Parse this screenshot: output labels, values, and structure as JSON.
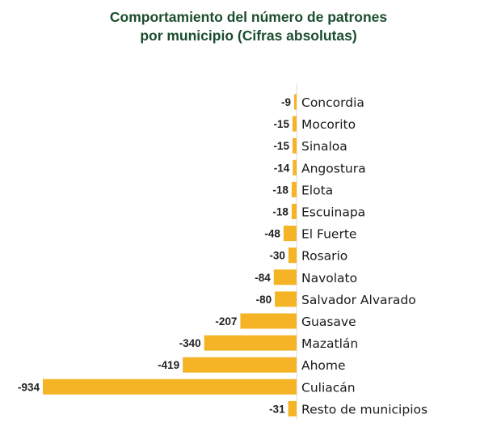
{
  "chart_data": {
    "type": "bar",
    "orientation": "horizontal",
    "title": "Comportamiento del número de patrones por municipio (Cifras absolutas)",
    "title_lines": [
      "Comportamiento del número de patrones",
      "por municipio (Cifras absolutas)"
    ],
    "categories": [
      "Concordia",
      "Mocorito",
      "Sinaloa",
      "Angostura",
      "Elota",
      "Escuinapa",
      "El Fuerte",
      "Rosario",
      "Navolato",
      "Salvador Alvarado",
      "Guasave",
      "Mazatlán",
      "Ahome",
      "Culiacán",
      "Resto de municipios"
    ],
    "values": [
      -9,
      -15,
      -15,
      -14,
      -18,
      -18,
      -48,
      -30,
      -84,
      -80,
      -207,
      -340,
      -419,
      -934,
      -31
    ],
    "value_labels": [
      "-9",
      "-15",
      "-15",
      "-14",
      "-18",
      "-18",
      "-48",
      "-30",
      "-84",
      "-80",
      "-207",
      "-340",
      "-419",
      "-934",
      "-31"
    ],
    "xlim": [
      -934,
      0
    ],
    "grid": false,
    "legend": "none",
    "colors": {
      "bar": "#f5b326",
      "axis": "#d9d9d9",
      "title": "#1b4d2e"
    }
  }
}
